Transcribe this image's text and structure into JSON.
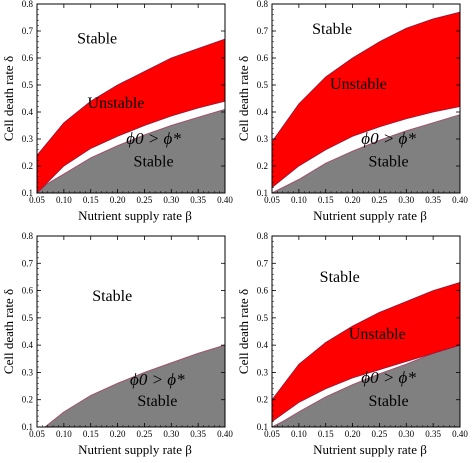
{
  "chart_data": [
    {
      "type": "area",
      "panel": "top-left",
      "xlabel": "Nutrient supply rate β",
      "ylabel": "Cell death rate δ",
      "xlim": [
        0.05,
        0.4
      ],
      "ylim": [
        0.1,
        0.8
      ],
      "xticks": [
        "0.05",
        "0.10",
        "0.15",
        "0.20",
        "0.25",
        "0.30",
        "0.35",
        "0.40"
      ],
      "yticks": [
        "0.1",
        "0.2",
        "0.3",
        "0.4",
        "0.5",
        "0.6",
        "0.7",
        "0.8"
      ],
      "unstable_region": {
        "x": [
          0.05,
          0.1,
          0.15,
          0.2,
          0.25,
          0.3,
          0.35,
          0.4
        ],
        "upper": [
          0.24,
          0.36,
          0.44,
          0.5,
          0.55,
          0.6,
          0.635,
          0.67
        ],
        "lower": [
          0.1,
          0.2,
          0.265,
          0.31,
          0.35,
          0.385,
          0.415,
          0.44
        ]
      },
      "gray_region": {
        "x": [
          0.05,
          0.07,
          0.1,
          0.15,
          0.2,
          0.25,
          0.3,
          0.35,
          0.4
        ],
        "upper": [
          0.1,
          0.135,
          0.17,
          0.23,
          0.275,
          0.315,
          0.35,
          0.38,
          0.41
        ]
      },
      "labels": {
        "stable_top": "Stable",
        "unstable": "Unstable",
        "condition": "ϕ0 > ϕ*",
        "stable_bottom": "Stable"
      }
    },
    {
      "type": "area",
      "panel": "top-right",
      "xlabel": "Nutrient supply rate β",
      "ylabel": "Cell death rate δ",
      "xlim": [
        0.05,
        0.4
      ],
      "ylim": [
        0.1,
        0.8
      ],
      "xticks": [
        "0.05",
        "0.10",
        "0.15",
        "0.20",
        "0.25",
        "0.30",
        "0.35",
        "0.40"
      ],
      "yticks": [
        "0.1",
        "0.2",
        "0.3",
        "0.4",
        "0.5",
        "0.6",
        "0.7",
        "0.8"
      ],
      "unstable_region": {
        "x": [
          0.05,
          0.1,
          0.15,
          0.2,
          0.25,
          0.3,
          0.35,
          0.4
        ],
        "upper": [
          0.29,
          0.43,
          0.53,
          0.6,
          0.66,
          0.71,
          0.745,
          0.77
        ],
        "lower": [
          0.12,
          0.2,
          0.26,
          0.31,
          0.345,
          0.375,
          0.4,
          0.42
        ]
      },
      "gray_region": {
        "x": [
          0.05,
          0.07,
          0.1,
          0.15,
          0.2,
          0.25,
          0.3,
          0.35,
          0.4
        ],
        "upper": [
          0.1,
          0.12,
          0.15,
          0.21,
          0.255,
          0.295,
          0.33,
          0.36,
          0.39
        ]
      },
      "labels": {
        "stable_top": "Stable",
        "unstable": "Unstable",
        "condition": "ϕ0 > ϕ*",
        "stable_bottom": "Stable"
      }
    },
    {
      "type": "area",
      "panel": "bottom-left",
      "xlabel": "Nutrient supply rate β",
      "ylabel": "Cell death rate δ",
      "xlim": [
        0.05,
        0.4
      ],
      "ylim": [
        0.1,
        0.8
      ],
      "xticks": [
        "0.05",
        "0.10",
        "0.15",
        "0.20",
        "0.25",
        "0.30",
        "0.35",
        "0.40"
      ],
      "yticks": [
        "0.1",
        "0.2",
        "0.3",
        "0.4",
        "0.5",
        "0.6",
        "0.7",
        "0.8"
      ],
      "unstable_region": null,
      "gray_region": {
        "x": [
          0.05,
          0.065,
          0.1,
          0.15,
          0.2,
          0.25,
          0.3,
          0.35,
          0.4
        ],
        "upper": [
          0.1,
          0.1,
          0.155,
          0.215,
          0.26,
          0.3,
          0.335,
          0.37,
          0.4
        ]
      },
      "labels": {
        "stable_top": "Stable",
        "unstable": "",
        "condition": "ϕ0 > ϕ*",
        "stable_bottom": "Stable"
      }
    },
    {
      "type": "area",
      "panel": "bottom-right",
      "xlabel": "Nutrient supply rate β",
      "ylabel": "Cell death rate δ",
      "xlim": [
        0.05,
        0.4
      ],
      "ylim": [
        0.1,
        0.8
      ],
      "xticks": [
        "0.05",
        "0.10",
        "0.15",
        "0.20",
        "0.25",
        "0.30",
        "0.35",
        "0.40"
      ],
      "yticks": [
        "0.1",
        "0.2",
        "0.3",
        "0.4",
        "0.5",
        "0.6",
        "0.7",
        "0.8"
      ],
      "unstable_region": {
        "x": [
          0.05,
          0.1,
          0.15,
          0.2,
          0.25,
          0.3,
          0.35,
          0.4
        ],
        "upper": [
          0.2,
          0.33,
          0.41,
          0.47,
          0.52,
          0.56,
          0.6,
          0.63
        ],
        "lower": [
          0.12,
          0.19,
          0.24,
          0.28,
          0.31,
          0.34,
          0.37,
          0.4
        ]
      },
      "gray_region": {
        "x": [
          0.05,
          0.07,
          0.1,
          0.15,
          0.2,
          0.25,
          0.3,
          0.35,
          0.4
        ],
        "upper": [
          0.1,
          0.12,
          0.155,
          0.21,
          0.255,
          0.295,
          0.33,
          0.37,
          0.4
        ]
      },
      "labels": {
        "stable_top": "Stable",
        "unstable": "Unstable",
        "condition": "ϕ0 > ϕ*",
        "stable_bottom": "Stable"
      }
    }
  ],
  "colors": {
    "unstable_fill": "#ff0000",
    "gray_fill": "#808080",
    "gray_edge": "#a0506e",
    "frame": "#000000",
    "background": "#ffffff"
  }
}
